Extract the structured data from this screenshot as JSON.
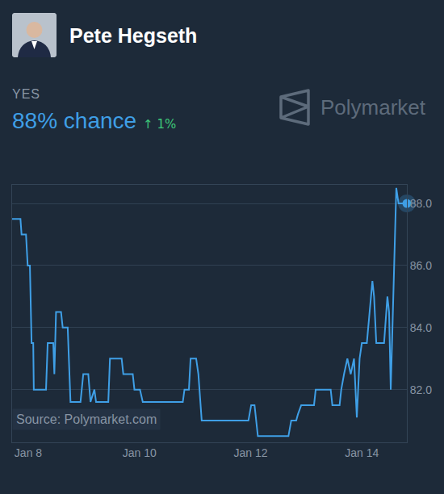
{
  "chart_data": {
    "type": "line",
    "title": "Pete Hegseth",
    "outcome": "YES",
    "subtitle": "88% chance",
    "change": "↑ 1%",
    "brand": "Polymarket",
    "annotations": [
      "Source: Polymarket.com"
    ],
    "color": "#3f9fe6",
    "marker": "end_dot",
    "grid": true,
    "x": [
      7.71,
      7.86,
      7.88,
      7.96,
      7.99,
      8.03,
      8.06,
      8.09,
      8.1,
      8.32,
      8.35,
      8.45,
      8.47,
      8.5,
      8.59,
      8.62,
      8.71,
      8.73,
      8.76,
      8.94,
      8.99,
      9.08,
      9.12,
      9.19,
      9.22,
      9.44,
      9.47,
      9.68,
      9.71,
      9.88,
      9.91,
      10.01,
      10.06,
      10.78,
      10.81,
      10.89,
      10.92,
      11.02,
      11.06,
      11.12,
      11.96,
      12.01,
      12.07,
      12.13,
      12.68,
      12.73,
      12.82,
      12.85,
      12.91,
      13.14,
      13.17,
      13.44,
      13.47,
      13.6,
      13.63,
      13.68,
      13.74,
      13.8,
      13.86,
      13.91,
      13.96,
      14.0,
      14.09,
      14.19,
      14.22,
      14.26,
      14.4,
      14.46,
      14.49,
      14.52,
      14.58,
      14.62,
      14.66,
      14.81
    ],
    "values": [
      87.5,
      87.5,
      87.0,
      87.0,
      86.0,
      86.0,
      83.5,
      83.5,
      82.0,
      82.0,
      83.5,
      83.5,
      82.5,
      84.5,
      84.5,
      84.0,
      84.0,
      83.0,
      81.6,
      81.6,
      82.5,
      82.5,
      81.6,
      82.0,
      81.6,
      81.6,
      83.0,
      83.0,
      82.5,
      82.5,
      82.0,
      82.0,
      81.6,
      81.6,
      82.0,
      82.0,
      83.0,
      83.0,
      82.5,
      81.0,
      81.0,
      81.5,
      81.5,
      80.5,
      80.5,
      81.0,
      81.0,
      81.2,
      81.5,
      81.5,
      82.0,
      82.0,
      81.5,
      81.5,
      82.0,
      82.5,
      83.0,
      82.5,
      83.0,
      81.1,
      83.0,
      83.5,
      83.5,
      85.5,
      85.0,
      83.5,
      83.5,
      85.0,
      84.5,
      82.0,
      86.0,
      88.5,
      88.0,
      88.0
    ],
    "xlim": [
      7.71,
      14.81
    ],
    "xticks": [
      {
        "value": 8,
        "label": "Jan 8"
      },
      {
        "value": 10,
        "label": "Jan 10"
      },
      {
        "value": 12,
        "label": "Jan 12"
      },
      {
        "value": 14,
        "label": "Jan 14"
      }
    ],
    "ylim": [
      80.3,
      88.6
    ],
    "yticks": [
      {
        "value": 82,
        "label": "82.0"
      },
      {
        "value": 84,
        "label": "84.0"
      },
      {
        "value": 86,
        "label": "86.0"
      },
      {
        "value": 88,
        "label": "88.0"
      }
    ]
  }
}
